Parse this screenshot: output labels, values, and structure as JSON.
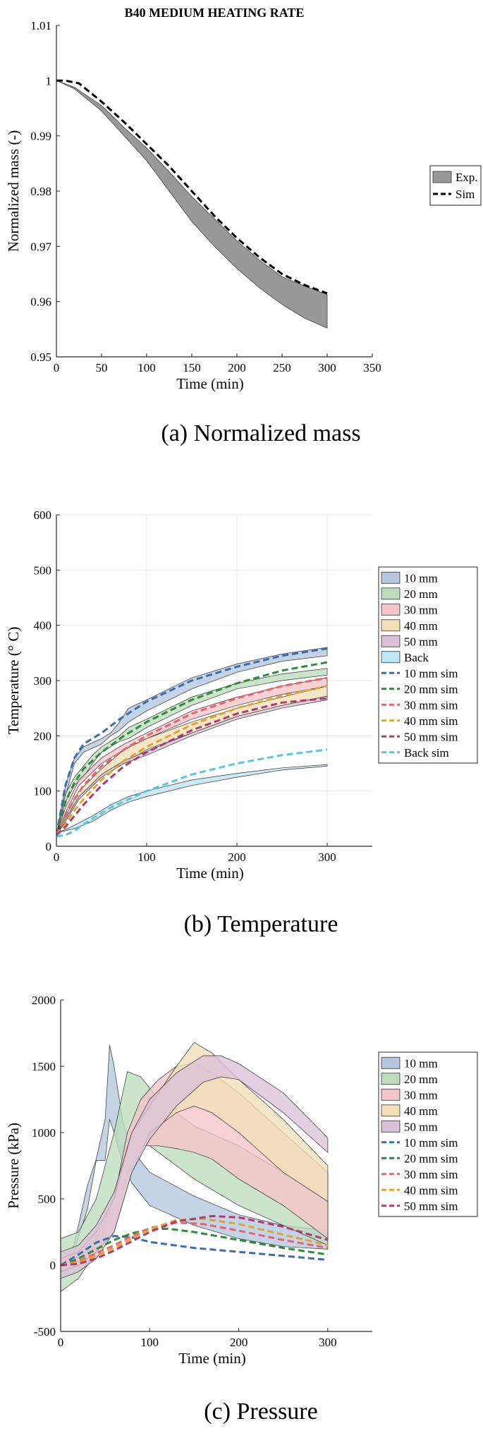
{
  "chart_data": [
    {
      "type": "area",
      "title": "B40 MEDIUM HEATING RATE",
      "caption": "(a) Normalized mass",
      "xlabel": "Time (min)",
      "ylabel": "Normalized mass (-)",
      "xlim": [
        0,
        350
      ],
      "ylim": [
        0.95,
        1.01
      ],
      "xticks": [
        "0",
        "50",
        "100",
        "150",
        "200",
        "250",
        "300",
        "350"
      ],
      "yticks": [
        "0.95",
        "0.96",
        "0.97",
        "0.98",
        "0.99",
        "1",
        "1.01"
      ],
      "legend": [
        "Exp.",
        "Sim"
      ],
      "legend_position": "right",
      "series": [
        {
          "name": "Exp.",
          "kind": "band",
          "color": "#999999",
          "x": [
            0,
            20,
            50,
            75,
            100,
            125,
            150,
            175,
            200,
            225,
            250,
            275,
            300
          ],
          "lower": [
            1.0,
            0.9985,
            0.9945,
            0.99,
            0.9855,
            0.98,
            0.9745,
            0.97,
            0.966,
            0.9625,
            0.9595,
            0.957,
            0.9552
          ],
          "upper": [
            1.0,
            0.9988,
            0.9955,
            0.9915,
            0.9878,
            0.9835,
            0.979,
            0.975,
            0.971,
            0.9675,
            0.9645,
            0.9628,
            0.9613
          ]
        },
        {
          "name": "Sim",
          "kind": "line",
          "dash": true,
          "color": "#000000",
          "x": [
            0,
            10,
            25,
            50,
            75,
            100,
            125,
            150,
            175,
            200,
            225,
            250,
            275,
            300
          ],
          "y": [
            1.0,
            1.0,
            0.9995,
            0.9962,
            0.9925,
            0.9885,
            0.9845,
            0.98,
            0.9755,
            0.9715,
            0.968,
            0.965,
            0.963,
            0.9615
          ]
        }
      ]
    },
    {
      "type": "area",
      "caption": "(b) Temperature",
      "xlabel": "Time (min)",
      "ylabel": "Temperature (° C)",
      "xlim": [
        0,
        350
      ],
      "ylim": [
        0,
        600
      ],
      "xticks": [
        "0",
        "100",
        "200",
        "300"
      ],
      "yticks": [
        "0",
        "100",
        "200",
        "300",
        "400",
        "500",
        "600"
      ],
      "legend": [
        "10 mm",
        "20 mm",
        "30 mm",
        "40 mm",
        "50 mm",
        "Back",
        "10 mm sim",
        "20 mm sim",
        "30 mm sim",
        "40 mm sim",
        "50 mm sim",
        "Back sim"
      ],
      "legend_position": "right",
      "series": [
        {
          "name": "10 mm",
          "kind": "band",
          "color": "#b4c7de",
          "x": [
            0,
            10,
            20,
            30,
            50,
            60,
            70,
            80,
            100,
            150,
            200,
            250,
            300
          ],
          "lower": [
            20,
            90,
            150,
            170,
            185,
            200,
            210,
            225,
            245,
            285,
            315,
            335,
            345
          ],
          "upper": [
            20,
            110,
            160,
            180,
            195,
            205,
            225,
            250,
            265,
            305,
            330,
            348,
            360
          ]
        },
        {
          "name": "20 mm",
          "kind": "band",
          "color": "#bddcbd",
          "x": [
            0,
            10,
            20,
            30,
            40,
            50,
            60,
            70,
            80,
            100,
            150,
            200,
            250,
            300
          ],
          "lower": [
            20,
            80,
            110,
            125,
            150,
            170,
            180,
            190,
            195,
            215,
            255,
            285,
            300,
            310
          ],
          "upper": [
            20,
            95,
            125,
            145,
            165,
            180,
            190,
            200,
            215,
            230,
            270,
            295,
            312,
            322
          ]
        },
        {
          "name": "30 mm",
          "kind": "band",
          "color": "#f5c4c8",
          "x": [
            0,
            10,
            25,
            50,
            75,
            100,
            150,
            200,
            250,
            300
          ],
          "lower": [
            20,
            60,
            110,
            150,
            175,
            195,
            230,
            255,
            275,
            290
          ],
          "upper": [
            20,
            70,
            120,
            160,
            185,
            205,
            245,
            270,
            290,
            305
          ]
        },
        {
          "name": "40 mm",
          "kind": "band",
          "color": "#f3dfb8",
          "x": [
            0,
            10,
            25,
            50,
            75,
            100,
            150,
            200,
            250,
            300
          ],
          "lower": [
            20,
            45,
            90,
            125,
            150,
            175,
            205,
            235,
            255,
            270
          ],
          "upper": [
            20,
            55,
            100,
            140,
            175,
            195,
            225,
            250,
            270,
            290
          ]
        },
        {
          "name": "50 mm",
          "kind": "band",
          "color": "#dcc0d8",
          "x": [
            0,
            10,
            25,
            50,
            75,
            100,
            150,
            200,
            250,
            300
          ],
          "lower": [
            20,
            45,
            85,
            125,
            150,
            165,
            200,
            230,
            250,
            265
          ],
          "upper": [
            20,
            50,
            90,
            130,
            155,
            172,
            205,
            235,
            255,
            272
          ]
        },
        {
          "name": "Back",
          "kind": "band",
          "color": "#bfe6f3",
          "x": [
            0,
            10,
            20,
            40,
            60,
            80,
            100,
            150,
            200,
            250,
            300
          ],
          "lower": [
            25,
            28,
            32,
            45,
            65,
            80,
            90,
            110,
            125,
            138,
            145
          ],
          "upper": [
            25,
            30,
            38,
            55,
            75,
            90,
            100,
            120,
            132,
            142,
            148
          ]
        },
        {
          "name": "10 mm sim",
          "kind": "line",
          "dash": true,
          "color": "#3b6db0",
          "x": [
            0,
            10,
            20,
            30,
            50,
            70,
            100,
            150,
            200,
            250,
            300
          ],
          "y": [
            20,
            110,
            160,
            185,
            205,
            230,
            262,
            300,
            325,
            345,
            358
          ]
        },
        {
          "name": "20 mm sim",
          "kind": "line",
          "dash": true,
          "color": "#2e8b3a",
          "x": [
            0,
            10,
            20,
            30,
            50,
            75,
            100,
            150,
            200,
            250,
            300
          ],
          "y": [
            20,
            80,
            115,
            140,
            170,
            200,
            225,
            265,
            295,
            318,
            333
          ]
        },
        {
          "name": "30 mm sim",
          "kind": "line",
          "dash": true,
          "color": "#e8636f",
          "x": [
            0,
            10,
            20,
            30,
            50,
            75,
            100,
            150,
            200,
            250,
            300
          ],
          "y": [
            20,
            55,
            85,
            110,
            145,
            175,
            200,
            240,
            268,
            290,
            305
          ]
        },
        {
          "name": "40 mm sim",
          "kind": "line",
          "dash": true,
          "color": "#e0a430",
          "x": [
            0,
            10,
            20,
            30,
            50,
            75,
            100,
            150,
            200,
            250,
            300
          ],
          "y": [
            20,
            40,
            65,
            85,
            120,
            155,
            180,
            220,
            250,
            272,
            290
          ]
        },
        {
          "name": "50 mm sim",
          "kind": "line",
          "dash": true,
          "color": "#b23a6e",
          "x": [
            0,
            10,
            20,
            30,
            50,
            75,
            100,
            150,
            200,
            250,
            300
          ],
          "y": [
            20,
            35,
            55,
            75,
            110,
            145,
            170,
            210,
            240,
            260,
            268
          ]
        },
        {
          "name": "Back sim",
          "kind": "line",
          "dash": true,
          "color": "#5bc5df",
          "x": [
            0,
            10,
            20,
            40,
            60,
            80,
            100,
            150,
            200,
            250,
            300
          ],
          "y": [
            18,
            20,
            28,
            50,
            70,
            85,
            100,
            130,
            150,
            165,
            175
          ]
        }
      ]
    },
    {
      "type": "area",
      "caption": "(c) Pressure",
      "xlabel": "Time (min)",
      "ylabel": "Pressure (kPa)",
      "xlim": [
        0,
        350
      ],
      "ylim": [
        -500,
        2000
      ],
      "xticks": [
        "0",
        "100",
        "200",
        "300"
      ],
      "yticks": [
        "-500",
        "0",
        "500",
        "1000",
        "1500",
        "2000"
      ],
      "legend": [
        "10 mm",
        "20 mm",
        "30 mm",
        "40 mm",
        "50 mm",
        "10 mm sim",
        "20 mm sim",
        "30 mm sim",
        "40 mm sim",
        "50 mm sim"
      ],
      "legend_position": "right",
      "series": [
        {
          "name": "10 mm",
          "kind": "band",
          "color": "#b4c7de",
          "x": [
            0,
            15,
            30,
            40,
            50,
            55,
            60,
            70,
            80,
            100,
            150,
            200,
            250,
            300
          ],
          "lower": [
            0,
            100,
            420,
            790,
            790,
            1100,
            1000,
            760,
            620,
            450,
            300,
            200,
            140,
            120
          ],
          "upper": [
            0,
            150,
            600,
            800,
            1100,
            1660,
            1500,
            1080,
            870,
            700,
            520,
            380,
            300,
            260
          ]
        },
        {
          "name": "20 mm",
          "kind": "band",
          "color": "#bddcbd",
          "x": [
            0,
            20,
            40,
            60,
            75,
            90,
            110,
            130,
            150,
            200,
            250,
            300
          ],
          "lower": [
            -200,
            -100,
            100,
            500,
            900,
            950,
            850,
            750,
            650,
            450,
            300,
            150
          ],
          "upper": [
            200,
            250,
            500,
            1000,
            1460,
            1420,
            1250,
            1150,
            1050,
            900,
            700,
            480
          ]
        },
        {
          "name": "30 mm",
          "kind": "band",
          "color": "#f5c4c8",
          "x": [
            0,
            20,
            40,
            60,
            75,
            90,
            110,
            130,
            150,
            170,
            200,
            250,
            300
          ],
          "lower": [
            -50,
            0,
            100,
            250,
            700,
            900,
            900,
            880,
            850,
            800,
            650,
            450,
            200
          ],
          "upper": [
            50,
            100,
            200,
            500,
            1000,
            1250,
            1400,
            1500,
            1520,
            1450,
            1300,
            1000,
            700
          ]
        },
        {
          "name": "40 mm",
          "kind": "band",
          "color": "#f3dfb8",
          "x": [
            0,
            20,
            40,
            60,
            80,
            100,
            130,
            150,
            170,
            200,
            250,
            300
          ],
          "lower": [
            -50,
            0,
            100,
            250,
            700,
            1000,
            1150,
            1200,
            1150,
            1000,
            700,
            480
          ],
          "upper": [
            50,
            100,
            250,
            500,
            1000,
            1200,
            1500,
            1680,
            1600,
            1400,
            1100,
            750
          ]
        },
        {
          "name": "50 mm",
          "kind": "band",
          "color": "#dcc0d8",
          "x": [
            0,
            20,
            40,
            60,
            80,
            100,
            130,
            160,
            180,
            200,
            250,
            300
          ],
          "lower": [
            -100,
            -50,
            50,
            250,
            700,
            950,
            1200,
            1380,
            1420,
            1400,
            1150,
            850
          ],
          "upper": [
            100,
            150,
            300,
            550,
            1000,
            1250,
            1450,
            1580,
            1580,
            1520,
            1300,
            960
          ]
        },
        {
          "name": "10 mm sim",
          "kind": "line",
          "dash": true,
          "color": "#3b6db0",
          "x": [
            0,
            20,
            40,
            60,
            80,
            100,
            150,
            200,
            250,
            300
          ],
          "y": [
            0,
            80,
            170,
            220,
            210,
            175,
            130,
            100,
            70,
            40
          ]
        },
        {
          "name": "20 mm sim",
          "kind": "line",
          "dash": true,
          "color": "#2e8b3a",
          "x": [
            0,
            20,
            40,
            60,
            80,
            100,
            120,
            150,
            200,
            250,
            300
          ],
          "y": [
            0,
            50,
            120,
            190,
            240,
            270,
            275,
            250,
            190,
            130,
            80
          ]
        },
        {
          "name": "30 mm sim",
          "kind": "line",
          "dash": true,
          "color": "#e8636f",
          "x": [
            0,
            20,
            40,
            60,
            80,
            100,
            130,
            160,
            200,
            250,
            300
          ],
          "y": [
            0,
            30,
            90,
            150,
            220,
            280,
            320,
            310,
            260,
            190,
            130
          ]
        },
        {
          "name": "40 mm sim",
          "kind": "line",
          "dash": true,
          "color": "#e0a430",
          "x": [
            0,
            20,
            40,
            60,
            80,
            100,
            130,
            160,
            200,
            250,
            300
          ],
          "y": [
            0,
            20,
            70,
            130,
            200,
            270,
            340,
            350,
            310,
            230,
            150
          ]
        },
        {
          "name": "50 mm sim",
          "kind": "line",
          "dash": true,
          "color": "#b23a6e",
          "x": [
            0,
            20,
            40,
            60,
            80,
            100,
            130,
            170,
            200,
            250,
            300
          ],
          "y": [
            0,
            10,
            50,
            110,
            180,
            250,
            330,
            370,
            360,
            290,
            190
          ]
        }
      ]
    }
  ]
}
